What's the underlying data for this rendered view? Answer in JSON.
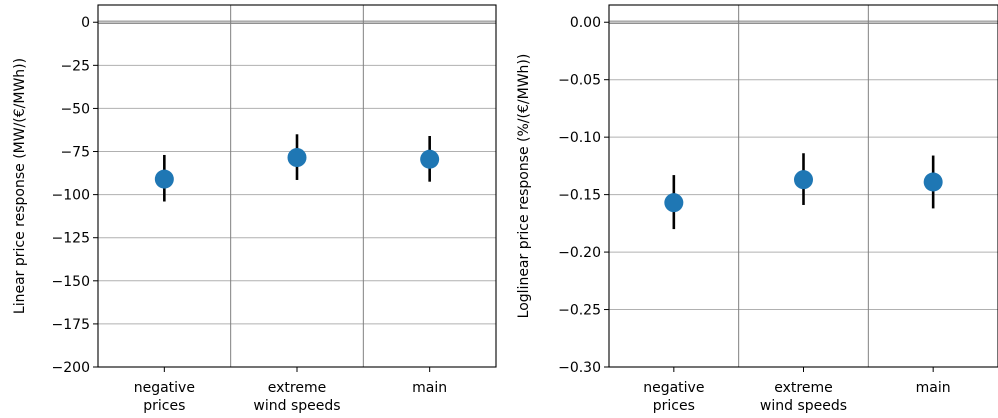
{
  "colors": {
    "marker": "#1f77b4",
    "errorbar": "#000000",
    "grid": "#b0b0b0",
    "axis": "#000000"
  },
  "chart_data": [
    {
      "type": "scatter",
      "subtype": "point-with-error-bars",
      "ylabel": "Linear price response (MW/(€/MWh))",
      "categories": [
        "negative\nprices",
        "extreme\nwind speeds",
        "main"
      ],
      "category_lines": [
        [
          "negative",
          "prices"
        ],
        [
          "extreme",
          "wind speeds"
        ],
        [
          "main"
        ]
      ],
      "values": [
        -91,
        -78.5,
        -79.5
      ],
      "error_low": [
        -104,
        -91.5,
        -92.5
      ],
      "error_high": [
        -77,
        -65,
        -66
      ],
      "ylim": [
        -200,
        10
      ],
      "yticks": [
        0,
        -25,
        -50,
        -75,
        -100,
        -125,
        -150,
        -175,
        -200
      ],
      "ytick_labels": [
        "0",
        "−25",
        "−50",
        "−75",
        "−100",
        "−125",
        "−150",
        "−175",
        "−200"
      ],
      "zero_line": true,
      "grid": true
    },
    {
      "type": "scatter",
      "subtype": "point-with-error-bars",
      "ylabel": "Loglinear price response (%/(€/MWh))",
      "categories": [
        "negative\nprices",
        "extreme\nwind speeds",
        "main"
      ],
      "category_lines": [
        [
          "negative",
          "prices"
        ],
        [
          "extreme",
          "wind speeds"
        ],
        [
          "main"
        ]
      ],
      "values": [
        -0.157,
        -0.137,
        -0.139
      ],
      "error_low": [
        -0.18,
        -0.159,
        -0.162
      ],
      "error_high": [
        -0.133,
        -0.114,
        -0.116
      ],
      "ylim": [
        -0.3,
        0.015
      ],
      "yticks": [
        0,
        -0.05,
        -0.1,
        -0.15,
        -0.2,
        -0.25,
        -0.3
      ],
      "ytick_labels": [
        "0.00",
        "−0.05",
        "−0.10",
        "−0.15",
        "−0.20",
        "−0.25",
        "−0.30"
      ],
      "zero_line": true,
      "grid": true
    }
  ]
}
